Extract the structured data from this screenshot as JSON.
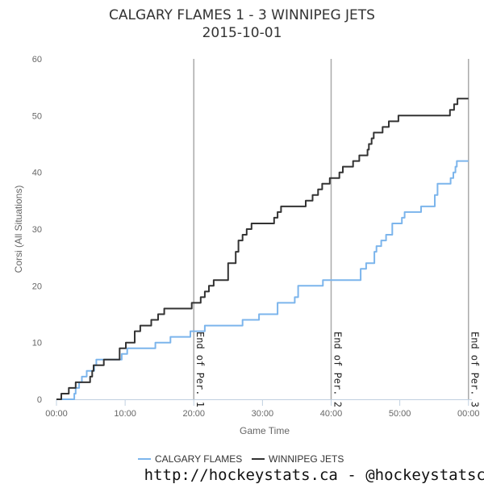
{
  "chart_data": {
    "type": "line",
    "title": "CALGARY FLAMES 1 - 3 WINNIPEG JETS",
    "subtitle": "2015-10-01",
    "xlabel": "Game Time",
    "ylabel": "Corsi (All Situations)",
    "xlim": [
      0,
      60.5
    ],
    "ylim": [
      0,
      60
    ],
    "x_ticks": [
      {
        "value": 0,
        "label": "00:00"
      },
      {
        "value": 10,
        "label": "10:00"
      },
      {
        "value": 20,
        "label": "20:00"
      },
      {
        "value": 30,
        "label": "30:00"
      },
      {
        "value": 40,
        "label": "40:00"
      },
      {
        "value": 50,
        "label": "50:00"
      },
      {
        "value": 60,
        "label": "00:00"
      }
    ],
    "y_ticks": [
      0,
      10,
      20,
      30,
      40,
      50,
      60
    ],
    "grid": false,
    "legend_position": "bottom",
    "period_markers": [
      {
        "x": 20,
        "label": "End of Per. 1"
      },
      {
        "x": 40,
        "label": "End of Per. 2"
      },
      {
        "x": 60,
        "label": "End of Per. 3"
      }
    ],
    "series": [
      {
        "name": "CALGARY FLAMES",
        "color": "#7cb5ec",
        "step": true,
        "points": [
          [
            0,
            0
          ],
          [
            2.5,
            0
          ],
          [
            2.6,
            1
          ],
          [
            2.8,
            2
          ],
          [
            3.3,
            3
          ],
          [
            3.7,
            4
          ],
          [
            4.4,
            5
          ],
          [
            5.5,
            6
          ],
          [
            5.8,
            7
          ],
          [
            9.5,
            8
          ],
          [
            10.3,
            9
          ],
          [
            14.4,
            10
          ],
          [
            16.6,
            11
          ],
          [
            19.5,
            12
          ],
          [
            21.6,
            13
          ],
          [
            27.1,
            14
          ],
          [
            29.5,
            15
          ],
          [
            32.2,
            17
          ],
          [
            34.7,
            18
          ],
          [
            35.2,
            20
          ],
          [
            38.8,
            21
          ],
          [
            44.3,
            23
          ],
          [
            45.1,
            24
          ],
          [
            46.3,
            26
          ],
          [
            46.6,
            27
          ],
          [
            47.3,
            28
          ],
          [
            48,
            29
          ],
          [
            48.9,
            31
          ],
          [
            50.3,
            32
          ],
          [
            50.7,
            33
          ],
          [
            53.1,
            34
          ],
          [
            55.1,
            36
          ],
          [
            55.5,
            38
          ],
          [
            57.4,
            39
          ],
          [
            57.8,
            40
          ],
          [
            58.1,
            41
          ],
          [
            58.3,
            42
          ],
          [
            60,
            42
          ]
        ]
      },
      {
        "name": "WINNIPEG JETS",
        "color": "#333333",
        "step": true,
        "points": [
          [
            0,
            0
          ],
          [
            0.7,
            1
          ],
          [
            1.8,
            2
          ],
          [
            2.8,
            3
          ],
          [
            4.9,
            4
          ],
          [
            5.2,
            5
          ],
          [
            5.4,
            6
          ],
          [
            6.9,
            7
          ],
          [
            9.2,
            9
          ],
          [
            10.1,
            10
          ],
          [
            11.4,
            12
          ],
          [
            12.2,
            13
          ],
          [
            13.8,
            14
          ],
          [
            14.8,
            15
          ],
          [
            15.7,
            16
          ],
          [
            19.7,
            17
          ],
          [
            21,
            18
          ],
          [
            21.6,
            19
          ],
          [
            22.2,
            20
          ],
          [
            22.9,
            21
          ],
          [
            25,
            24
          ],
          [
            26.1,
            26
          ],
          [
            26.5,
            28
          ],
          [
            27.1,
            29
          ],
          [
            27.7,
            30
          ],
          [
            28.4,
            31
          ],
          [
            31.7,
            32
          ],
          [
            32.2,
            33
          ],
          [
            32.7,
            34
          ],
          [
            36.3,
            35
          ],
          [
            37.3,
            36
          ],
          [
            38.1,
            37
          ],
          [
            38.7,
            38
          ],
          [
            39.8,
            39
          ],
          [
            41.2,
            40
          ],
          [
            41.7,
            41
          ],
          [
            43.2,
            42
          ],
          [
            44.1,
            43
          ],
          [
            45.3,
            44
          ],
          [
            45.5,
            45
          ],
          [
            45.9,
            46
          ],
          [
            46.2,
            47
          ],
          [
            47.5,
            48
          ],
          [
            48.4,
            49
          ],
          [
            49.8,
            50
          ],
          [
            57.3,
            51
          ],
          [
            57.9,
            52
          ],
          [
            58.4,
            53
          ],
          [
            60,
            53
          ]
        ]
      }
    ]
  },
  "watermark": "http://hockeystats.ca - @hockeystatsca"
}
